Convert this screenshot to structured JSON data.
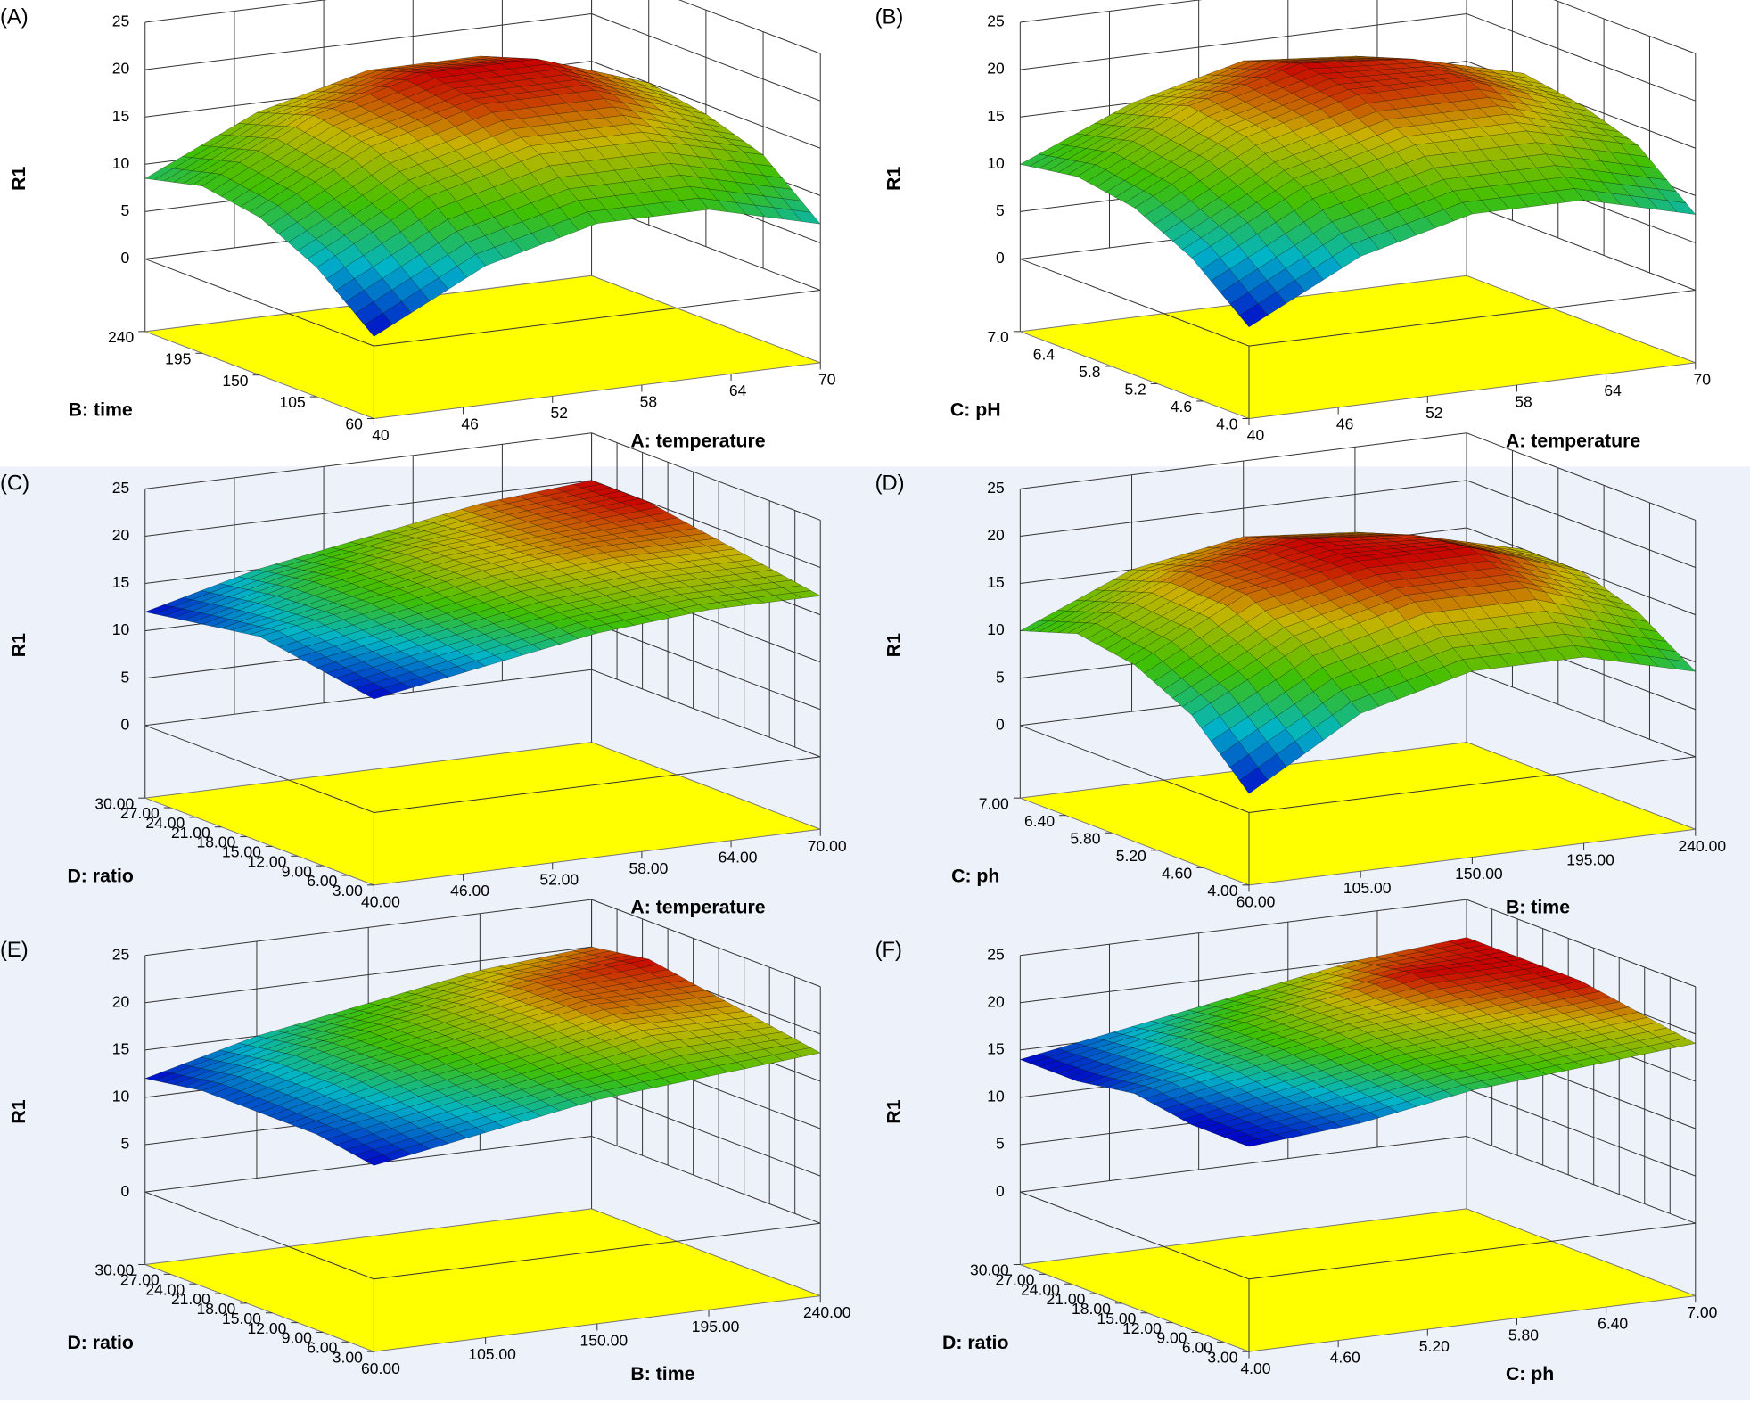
{
  "chart_data": [
    {
      "type": "surface",
      "panel": "(A)",
      "background": "#ffffff",
      "floor_color": "#ffff00",
      "zlabel": "R1",
      "zlim": [
        0,
        25
      ],
      "zticks": [
        0,
        5,
        10,
        15,
        20,
        25
      ],
      "xlabel": "A: temperature",
      "xlim": [
        40,
        70
      ],
      "xticks": [
        40,
        46,
        52,
        58,
        64,
        70
      ],
      "ylabel": "B: time",
      "ylim": [
        60,
        240
      ],
      "yticks": [
        60,
        105,
        150,
        195,
        240
      ],
      "z": [
        [
          1,
          7,
          10,
          10,
          7
        ],
        [
          6,
          12,
          15,
          15,
          12
        ],
        [
          9,
          15,
          18,
          18,
          14
        ],
        [
          10,
          16,
          19,
          19,
          15
        ],
        [
          8.5,
          14,
          17,
          17,
          13
        ]
      ]
    },
    {
      "type": "surface",
      "panel": "(B)",
      "background": "#ffffff",
      "floor_color": "#ffff00",
      "zlabel": "R1",
      "zlim": [
        0,
        25
      ],
      "zticks": [
        0,
        5,
        10,
        15,
        20,
        25
      ],
      "xlabel": "A: temperature",
      "xlim": [
        40,
        70
      ],
      "xticks": [
        40,
        46,
        52,
        58,
        64,
        70
      ],
      "ylabel": "C: pH",
      "ylim": [
        4,
        7
      ],
      "yticks": [
        {
          "value": 4,
          "label": "4.0"
        },
        4.6,
        5.2,
        5.8,
        6.4,
        {
          "value": 7,
          "label": "7.0"
        }
      ],
      "z": [
        [
          2,
          8,
          11,
          11,
          8
        ],
        [
          7,
          13,
          16,
          16,
          13
        ],
        [
          10,
          16,
          19,
          19,
          15
        ],
        [
          11,
          17,
          20,
          19,
          16
        ],
        [
          10,
          15,
          18,
          17,
          14
        ]
      ]
    },
    {
      "type": "surface",
      "panel": "(C)",
      "background": "#edf1fa",
      "floor_color": "#ffff00",
      "zlabel": "R1",
      "zlim": [
        0,
        25
      ],
      "zticks": [
        0,
        5,
        10,
        15,
        20,
        25
      ],
      "xlabel": "A: temperature",
      "xlim": [
        40,
        70
      ],
      "xticks": [
        {
          "value": 40,
          "label": "40.00"
        },
        {
          "value": 46,
          "label": "46.00"
        },
        {
          "value": 52,
          "label": "52.00"
        },
        {
          "value": 58,
          "label": "58.00"
        },
        {
          "value": 64,
          "label": "64.00"
        },
        {
          "value": 70,
          "label": "70.00"
        }
      ],
      "ylabel": "D: ratio",
      "ylim": [
        3,
        30
      ],
      "yticks": [
        {
          "value": 3,
          "label": "3.00"
        },
        {
          "value": 6,
          "label": "6.00"
        },
        {
          "value": 9,
          "label": "9.00"
        },
        {
          "value": 12,
          "label": "12.00"
        },
        {
          "value": 15,
          "label": "15.00"
        },
        {
          "value": 18,
          "label": "18.00"
        },
        {
          "value": 21,
          "label": "21.00"
        },
        {
          "value": 24,
          "label": "24.00"
        },
        {
          "value": 27,
          "label": "27.00"
        },
        {
          "value": 30,
          "label": "30.00"
        }
      ],
      "z": [
        [
          12,
          14,
          16,
          17,
          17
        ],
        [
          13,
          15,
          17,
          18,
          18
        ],
        [
          14,
          16,
          18,
          19,
          19
        ],
        [
          13,
          16,
          18,
          19,
          20
        ],
        [
          12,
          15,
          17,
          19,
          20
        ]
      ]
    },
    {
      "type": "surface",
      "panel": "(D)",
      "background": "#edf1fa",
      "floor_color": "#ffff00",
      "zlabel": "R1",
      "zlim": [
        0,
        25
      ],
      "zticks": [
        0,
        5,
        10,
        15,
        20,
        25
      ],
      "xlabel": "B: time",
      "xlim": [
        60,
        240
      ],
      "xticks": [
        {
          "value": 60,
          "label": "60.00"
        },
        {
          "value": 105,
          "label": "105.00"
        },
        {
          "value": 150,
          "label": "150.00"
        },
        {
          "value": 195,
          "label": "195.00"
        },
        {
          "value": 240,
          "label": "240.00"
        }
      ],
      "ylabel": "C: ph",
      "ylim": [
        4,
        7
      ],
      "yticks": [
        {
          "value": 4,
          "label": "4.00"
        },
        {
          "value": 4.6,
          "label": "4.60"
        },
        {
          "value": 5.2,
          "label": "5.20"
        },
        {
          "value": 5.8,
          "label": "5.80"
        },
        {
          "value": 6.4,
          "label": "6.40"
        },
        {
          "value": 7,
          "label": "7.00"
        }
      ],
      "z": [
        [
          2,
          9,
          12,
          12,
          9
        ],
        [
          8,
          14,
          17,
          17,
          13
        ],
        [
          11,
          17,
          19,
          19,
          15
        ],
        [
          12,
          17,
          19,
          18,
          15
        ],
        [
          10,
          15,
          17,
          16,
          12
        ]
      ]
    },
    {
      "type": "surface",
      "panel": "(E)",
      "background": "#edf1fa",
      "floor_color": "#ffff00",
      "zlabel": "R1",
      "zlim": [
        0,
        25
      ],
      "zticks": [
        0,
        5,
        10,
        15,
        20,
        25
      ],
      "xlabel": "B: time",
      "xlim": [
        60,
        240
      ],
      "xticks": [
        {
          "value": 60,
          "label": "60.00"
        },
        {
          "value": 105,
          "label": "105.00"
        },
        {
          "value": 150,
          "label": "150.00"
        },
        {
          "value": 195,
          "label": "195.00"
        },
        {
          "value": 240,
          "label": "240.00"
        }
      ],
      "ylabel": "D: ratio",
      "ylim": [
        3,
        30
      ],
      "yticks": [
        {
          "value": 3,
          "label": "3.00"
        },
        {
          "value": 6,
          "label": "6.00"
        },
        {
          "value": 9,
          "label": "9.00"
        },
        {
          "value": 12,
          "label": "12.00"
        },
        {
          "value": 15,
          "label": "15.00"
        },
        {
          "value": 18,
          "label": "18.00"
        },
        {
          "value": 21,
          "label": "21.00"
        },
        {
          "value": 24,
          "label": "24.00"
        },
        {
          "value": 27,
          "label": "27.00"
        },
        {
          "value": 30,
          "label": "30.00"
        }
      ],
      "z": [
        [
          12,
          14,
          16,
          17,
          18
        ],
        [
          13,
          15,
          17,
          19,
          19
        ],
        [
          13,
          16,
          18,
          20,
          20
        ],
        [
          13,
          16,
          18,
          20,
          21
        ],
        [
          12,
          15,
          17,
          19,
          20
        ]
      ]
    },
    {
      "type": "surface",
      "panel": "(F)",
      "background": "#edf1fa",
      "floor_color": "#ffff00",
      "zlabel": "R1",
      "zlim": [
        0,
        25
      ],
      "zticks": [
        0,
        5,
        10,
        15,
        20,
        25
      ],
      "xlabel": "C: ph",
      "xlim": [
        4,
        7
      ],
      "xticks": [
        {
          "value": 4,
          "label": "4.00"
        },
        {
          "value": 4.6,
          "label": "4.60"
        },
        {
          "value": 5.2,
          "label": "5.20"
        },
        {
          "value": 5.8,
          "label": "5.80"
        },
        {
          "value": 6.4,
          "label": "6.40"
        },
        {
          "value": 7,
          "label": "7.00"
        }
      ],
      "ylabel": "D: ratio",
      "ylim": [
        3,
        30
      ],
      "yticks": [
        {
          "value": 3,
          "label": "3.00"
        },
        {
          "value": 6,
          "label": "6.00"
        },
        {
          "value": 9,
          "label": "9.00"
        },
        {
          "value": 12,
          "label": "12.00"
        },
        {
          "value": 15,
          "label": "15.00"
        },
        {
          "value": 18,
          "label": "18.00"
        },
        {
          "value": 21,
          "label": "21.00"
        },
        {
          "value": 24,
          "label": "24.00"
        },
        {
          "value": 27,
          "label": "27.00"
        },
        {
          "value": 30,
          "label": "30.00"
        }
      ],
      "z": [
        [
          14,
          15,
          17,
          18,
          19
        ],
        [
          14,
          16,
          18,
          19,
          20
        ],
        [
          15,
          17,
          19,
          20,
          21
        ],
        [
          14,
          17,
          19,
          21,
          21
        ],
        [
          14,
          16,
          18,
          20,
          21
        ]
      ]
    }
  ]
}
